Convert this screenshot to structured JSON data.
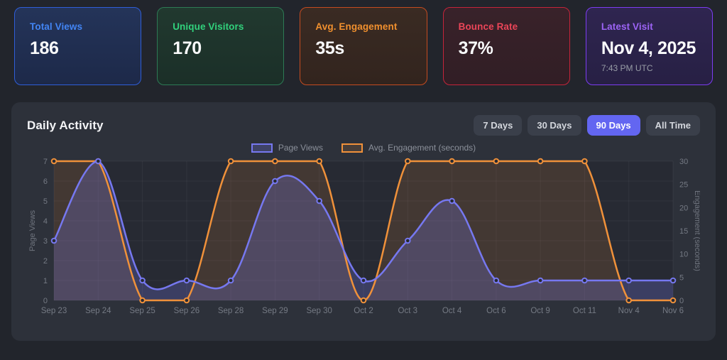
{
  "stats_cards": [
    {
      "label": "Total Views",
      "value": "186",
      "accent": "#4285f4",
      "border": "#2f5ed8",
      "bg_top": "#243459",
      "bg_bottom": "#1d2949"
    },
    {
      "label": "Unique Visitors",
      "value": "170",
      "accent": "#31d17c",
      "border": "#2d7a55",
      "bg_top": "#21392f",
      "bg_bottom": "#1b2f28"
    },
    {
      "label": "Avg. Engagement",
      "value": "35s",
      "accent": "#f0902e",
      "border": "#c54b20",
      "bg_top": "#3a2b23",
      "bg_bottom": "#32241e"
    },
    {
      "label": "Bounce Rate",
      "value": "37%",
      "accent": "#eb4558",
      "border": "#c5243a",
      "bg_top": "#39222a",
      "bg_bottom": "#311e25"
    },
    {
      "label": "Latest Visit",
      "value": "Nov 4, 2025",
      "sub_value": "7:43 PM UTC",
      "accent": "#9d64f6",
      "border": "#7d3cf2",
      "bg_top": "#2f2550",
      "bg_bottom": "#272044"
    }
  ],
  "activity_panel": {
    "title": "Daily Activity",
    "ranges": [
      {
        "label": "7 Days",
        "active": false
      },
      {
        "label": "30 Days",
        "active": false
      },
      {
        "label": "90 Days",
        "active": true
      },
      {
        "label": "All Time",
        "active": false
      }
    ],
    "active_range_color": "#6366f1"
  },
  "chart_data": {
    "type": "line",
    "title": "Daily Activity",
    "categories": [
      "Sep 23",
      "Sep 24",
      "Sep 25",
      "Sep 26",
      "Sep 28",
      "Sep 29",
      "Sep 30",
      "Oct 2",
      "Oct 3",
      "Oct 4",
      "Oct 6",
      "Oct 9",
      "Oct 11",
      "Nov 4",
      "Nov 6"
    ],
    "series": [
      {
        "name": "Page Views",
        "axis": "left",
        "color": "#7678f0",
        "fill": "rgba(118,122,240,0.25)",
        "values": [
          3,
          7,
          1,
          1,
          1,
          6,
          5,
          1,
          3,
          5,
          1,
          1,
          1,
          1,
          1
        ]
      },
      {
        "name": "Avg. Engagement (seconds)",
        "axis": "right",
        "color": "#f0913a",
        "fill": "rgba(240,145,58,0.14)",
        "values": [
          30,
          30,
          0,
          0,
          30,
          30,
          30,
          0,
          30,
          30,
          30,
          30,
          30,
          0,
          0
        ]
      }
    ],
    "left_axis": {
      "label": "Page Views",
      "min": 0,
      "max": 7,
      "ticks": [
        0,
        1,
        2,
        3,
        4,
        5,
        6,
        7
      ]
    },
    "right_axis": {
      "label": "Engagement (seconds)",
      "min": 0,
      "max": 30,
      "ticks": [
        0,
        5,
        10,
        15,
        20,
        25,
        30
      ]
    },
    "legend_position": "top",
    "grid": true,
    "colors": {
      "plot_bg": "#272a33",
      "grid_line": "rgba(255,255,255,0.05)",
      "tick_text": "#757a84",
      "axis_title_text": "#6f747e"
    }
  }
}
